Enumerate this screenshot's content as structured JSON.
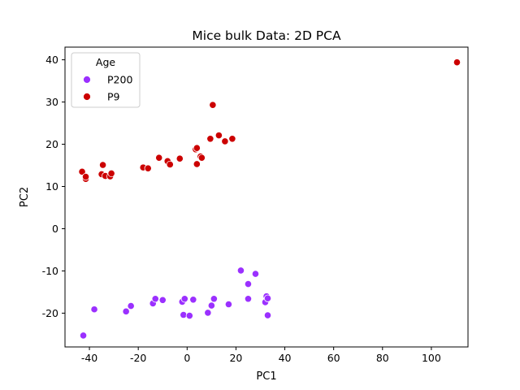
{
  "chart_data": {
    "type": "scatter",
    "title": "Mice bulk Data: 2D PCA",
    "xlabel": "PC1",
    "ylabel": "PC2",
    "xlim": [
      -50,
      115
    ],
    "ylim": [
      -28,
      43
    ],
    "xticks": [
      -40,
      -20,
      0,
      20,
      40,
      60,
      80,
      100
    ],
    "yticks": [
      -20,
      -10,
      0,
      10,
      20,
      30,
      40
    ],
    "grid": false,
    "legend": {
      "title": "Age",
      "placement": "top-left"
    },
    "series": [
      {
        "name": "P200",
        "color": "#9b30ff",
        "x": [
          -42.5,
          -38,
          -25,
          -23,
          -14,
          -13,
          -10,
          -2,
          -1.5,
          -1,
          1,
          2.5,
          8.5,
          10,
          11,
          17,
          22,
          25,
          25,
          28,
          32,
          32.5,
          33,
          33
        ],
        "y": [
          -25.3,
          -19.1,
          -19.6,
          -18.3,
          -17.7,
          -16.6,
          -16.9,
          -17.3,
          -20.4,
          -16.6,
          -20.6,
          -16.8,
          -19.9,
          -18.2,
          -16.6,
          -17.9,
          -9.9,
          -13.1,
          -16.6,
          -10.7,
          -17.4,
          -16.0,
          -16.5,
          -20.5
        ]
      },
      {
        "name": "P9",
        "color": "#cc0000",
        "x": [
          -43,
          -41.5,
          -41.5,
          -35,
          -34.5,
          -33.5,
          -31.5,
          -31,
          -18,
          -16,
          -11.5,
          -8,
          -7,
          -3,
          3.5,
          4,
          4,
          5.5,
          6,
          9.5,
          10.5,
          13,
          15.5,
          18.5,
          110.5
        ],
        "y": [
          13.5,
          11.8,
          12.3,
          12.9,
          15.1,
          12.5,
          12.4,
          13.1,
          14.5,
          14.3,
          16.8,
          16.0,
          15.2,
          16.6,
          18.8,
          19.1,
          15.3,
          17.1,
          16.8,
          21.3,
          29.3,
          22.1,
          20.7,
          21.3,
          39.4
        ]
      }
    ]
  }
}
